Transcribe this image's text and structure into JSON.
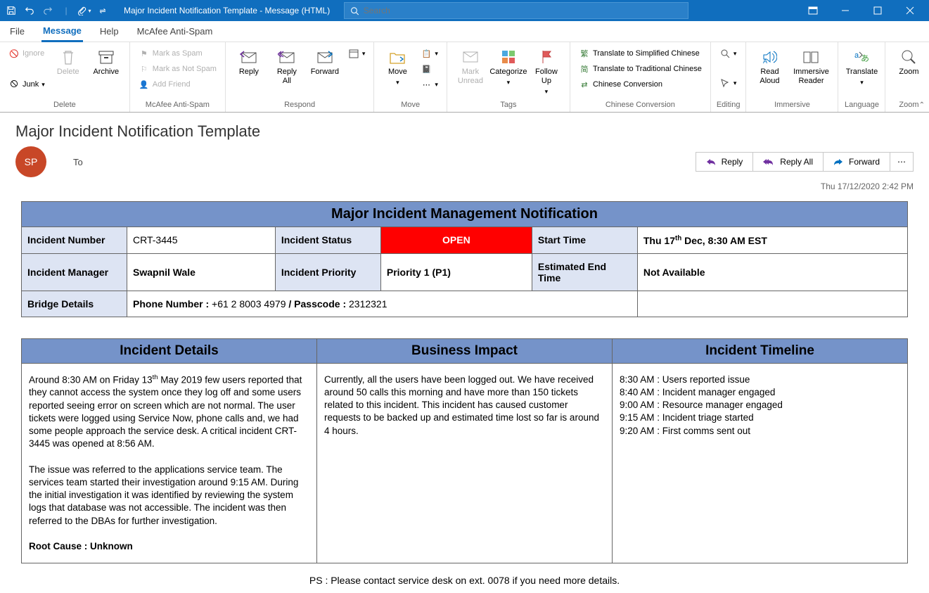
{
  "titlebar": {
    "title": "Major Incident Notification Template  -  Message (HTML)",
    "search_placeholder": "Search"
  },
  "menutabs": [
    "File",
    "Message",
    "Help",
    "McAfee Anti-Spam"
  ],
  "ribbon": {
    "delete_group": {
      "ignore": "Ignore",
      "junk": "Junk",
      "delete": "Delete",
      "archive": "Archive",
      "label": "Delete"
    },
    "spam_group": {
      "mark_spam": "Mark as Spam",
      "mark_not_spam": "Mark as Not Spam",
      "add_friend": "Add Friend",
      "label": "McAfee Anti-Spam"
    },
    "respond_group": {
      "reply": "Reply",
      "reply_all": "Reply\nAll",
      "forward": "Forward",
      "label": "Respond"
    },
    "move_group": {
      "move": "Move",
      "label": "Move"
    },
    "tags_group": {
      "mark_unread": "Mark\nUnread",
      "categorize": "Categorize",
      "follow_up": "Follow\nUp",
      "label": "Tags"
    },
    "chinese_group": {
      "simplified": "Translate to Simplified Chinese",
      "traditional": "Translate to Traditional Chinese",
      "conversion": "Chinese Conversion",
      "label": "Chinese Conversion"
    },
    "editing_group": {
      "label": "Editing"
    },
    "immersive_group": {
      "read_aloud": "Read\nAloud",
      "immersive_reader": "Immersive\nReader",
      "label": "Immersive"
    },
    "language_group": {
      "translate": "Translate",
      "label": "Language"
    },
    "zoom_group": {
      "zoom": "Zoom",
      "label": "Zoom"
    }
  },
  "message": {
    "subject": "Major Incident Notification Template",
    "avatar": "SP",
    "to_label": "To",
    "reply": "Reply",
    "reply_all": "Reply All",
    "forward": "Forward",
    "datetime": "Thu 17/12/2020 2:42 PM"
  },
  "incident": {
    "banner": "Major Incident Management Notification",
    "labels": {
      "number": "Incident Number",
      "status": "Incident Status",
      "start": "Start Time",
      "manager": "Incident Manager",
      "priority": "Incident Priority",
      "est_end": "Estimated End Time",
      "bridge": "Bridge Details"
    },
    "values": {
      "number": "CRT-3445",
      "status": "OPEN",
      "start": "Thu 17th Dec, 8:30 AM EST",
      "manager": "Swapnil Wale",
      "priority": "Priority 1 (P1)",
      "est_end": "Not Available",
      "bridge_phone_label": "Phone Number : ",
      "bridge_phone": "+61 2 8003 4979",
      "bridge_pass_label": " / Passcode : ",
      "bridge_pass": "2312321"
    }
  },
  "sections": {
    "details_title": "Incident Details",
    "impact_title": "Business Impact",
    "timeline_title": "Incident Timeline",
    "details": "Around 8:30 AM on Friday 13th May 2019 few users reported that they cannot access the system once they log off and some users reported seeing error on screen which are not normal. The user tickets were logged using Service Now, phone calls and, we had some people approach the service desk. A critical incident CRT-3445 was opened at 8:56 AM.\n\nThe issue was referred to the applications service team. The services team started their investigation around 9:15 AM. During the initial investigation it was identified by reviewing the system logs that database was not accessible. The incident was then referred to the DBAs for further investigation.",
    "root_cause_label": "Root Cause : ",
    "root_cause": "Unknown",
    "impact": "Currently, all the users have been logged out. We have received around 50 calls this morning and have more than 150 tickets related to this incident. This incident has caused customer requests to be backed up and estimated time lost so far is around 4 hours.",
    "timeline": [
      "8:30 AM : Users reported issue",
      "8:40 AM : Incident manager engaged",
      "9:00 AM : Resource manager engaged",
      "9:15 AM : Incident triage started",
      "9:20 AM : First comms sent out"
    ]
  },
  "ps": "PS : Please contact service desk on ext. 0078 if you need more details.",
  "colors": {
    "accent": "#106ebe",
    "table_header": "#7593c9",
    "table_label_bg": "#dde4f3",
    "status_open": "#ff0000",
    "avatar": "#c84727"
  }
}
